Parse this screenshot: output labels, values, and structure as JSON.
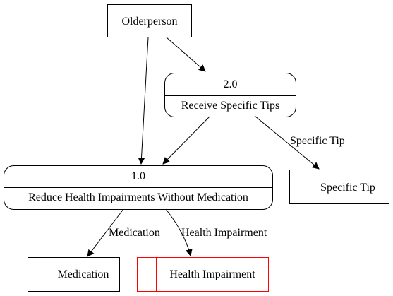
{
  "diagram": {
    "entities": {
      "older_person": {
        "label": "Olderperson"
      }
    },
    "processes": {
      "p2": {
        "id": "2.0",
        "label": "Receive Specific Tips"
      },
      "p1": {
        "id": "1.0",
        "label": "Reduce Health Impairments Without Medication"
      }
    },
    "stores": {
      "specific_tip": {
        "label": "Specific Tip",
        "color": "#000000"
      },
      "medication": {
        "label": "Medication",
        "color": "#000000"
      },
      "health_impairment": {
        "label": "Health Impairment",
        "color": "#ff0000"
      }
    },
    "flows": {
      "to_specific_tip": {
        "label": "Specific Tip"
      },
      "to_medication": {
        "label": "Medication"
      },
      "to_health_impairment": {
        "label": "Health Impairment"
      }
    }
  }
}
